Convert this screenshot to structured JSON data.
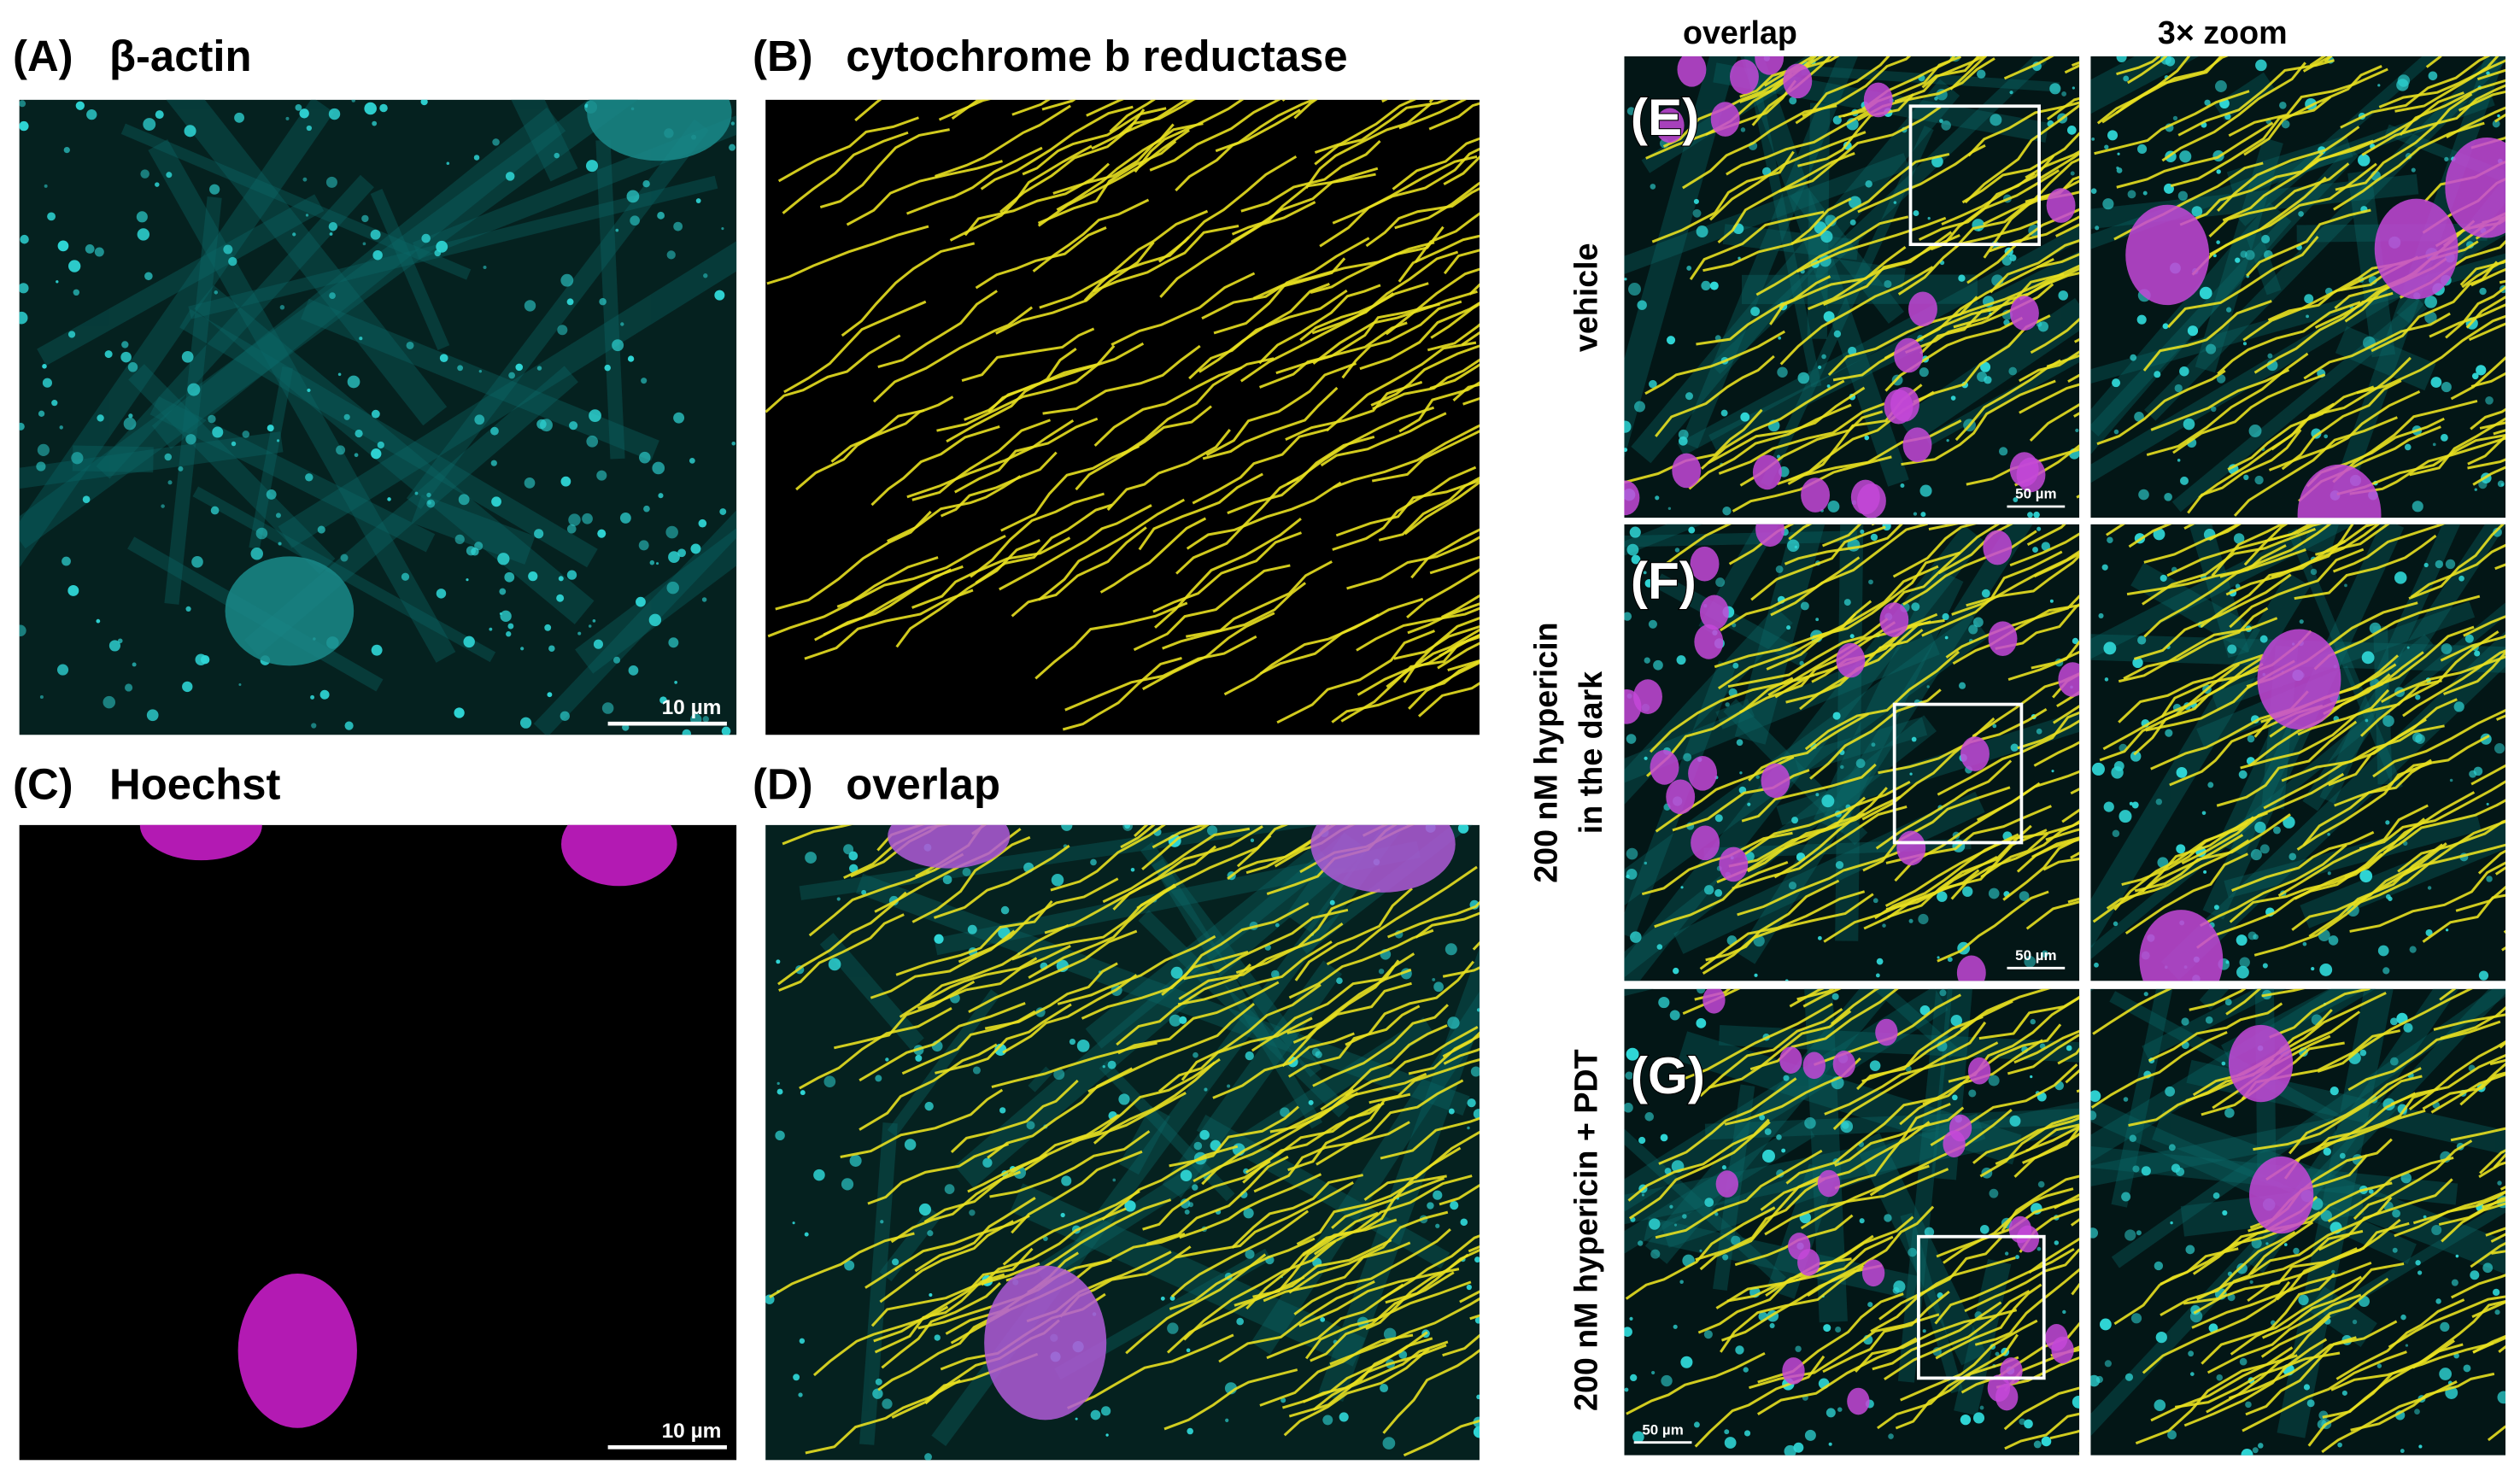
{
  "panels": [
    {
      "label": "(A)",
      "title": "β-actin",
      "scale_bar": "10 µm"
    },
    {
      "label": "(B)",
      "title": "cytochrome b reductase"
    },
    {
      "label": "(C)",
      "title": "Hoechst",
      "scale_bar": "10 µm"
    },
    {
      "label": "(D)",
      "title": "overlap"
    }
  ],
  "right": {
    "column_headers": [
      "overlap",
      "3× zoom"
    ],
    "rows": [
      {
        "label": "(E)",
        "condition": [
          "vehicle"
        ],
        "scale_bar": "50 µm"
      },
      {
        "label": "(F)",
        "condition": [
          "200 nM hypericin",
          "in the dark"
        ],
        "scale_bar": "50 µm"
      },
      {
        "label": "(G)",
        "condition": [
          "200 nM hypericin + PDT"
        ],
        "scale_bar": "50 µm"
      }
    ]
  }
}
